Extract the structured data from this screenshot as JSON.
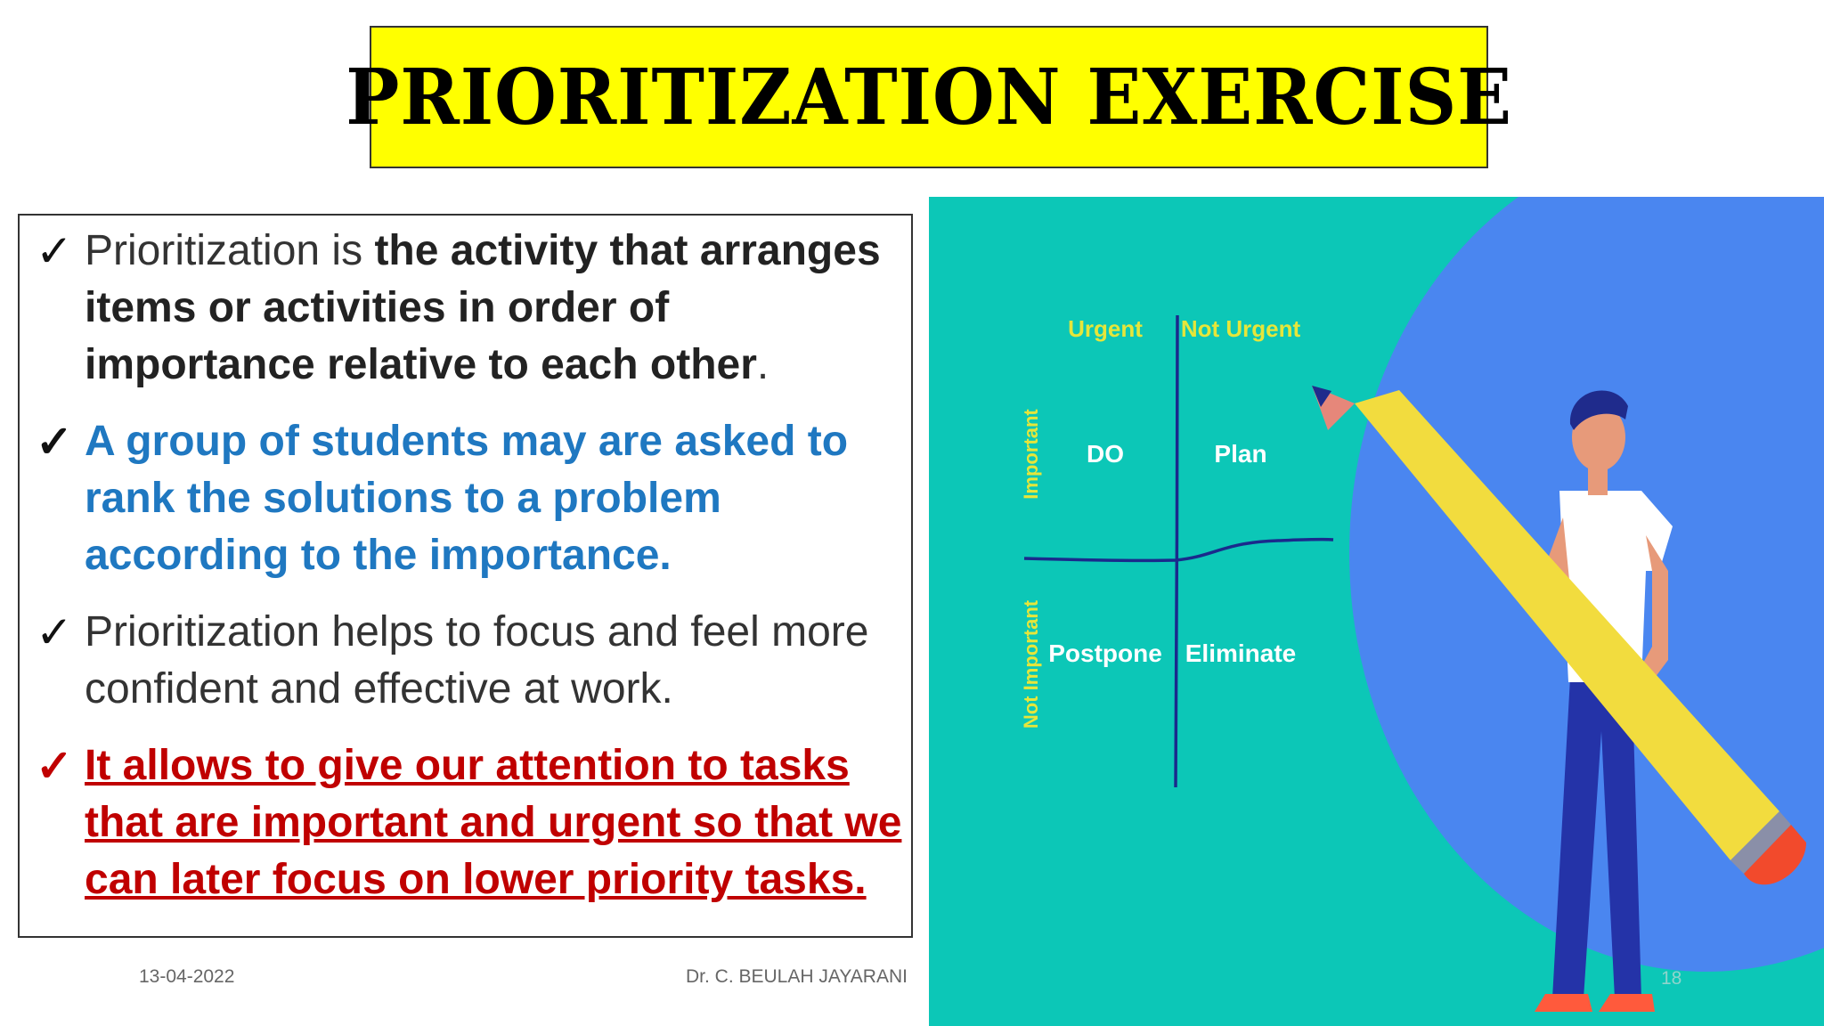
{
  "title": "PRIORITIZATION EXERCISE",
  "points": [
    {
      "lead": "Prioritization is ",
      "bold": "the activity that arranges items or activities in order of importance relative to each other",
      "tail": "."
    },
    {
      "text": " A group of students may are asked to rank the solutions to a problem according to the importance."
    },
    {
      "text": "Prioritization helps to focus and feel more confident and effective at work."
    },
    {
      "text": "It allows to give our attention to tasks that are important and urgent so that we can later focus on lower priority tasks."
    }
  ],
  "check_mark": "✓",
  "footer": {
    "date": "13-04-2022",
    "author": "Dr. C. BEULAH JAYARANI",
    "page": "18"
  },
  "matrix": {
    "col_urgent": "Urgent",
    "col_not_urgent": "Not Urgent",
    "row_important": "Important",
    "row_not_important": "Not Important",
    "q_do": "DO",
    "q_plan": "Plan",
    "q_postpone": "Postpone",
    "q_eliminate": "Eliminate"
  },
  "colors": {
    "title_bg": "#ffff00",
    "teal_bg": "#0cc7b7",
    "blue_oval": "#4a86f0",
    "matrix_label": "#e6e63a",
    "blue_text": "#1f78c1",
    "red_text": "#c00000"
  }
}
